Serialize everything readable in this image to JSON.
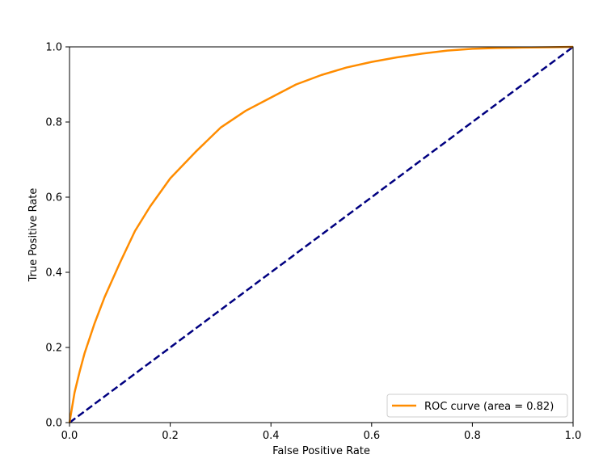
{
  "chart_data": {
    "type": "line",
    "title": "",
    "xlabel": "False Positive Rate",
    "ylabel": "True Positive Rate",
    "xlim": [
      0.0,
      1.0
    ],
    "ylim": [
      0.0,
      1.0
    ],
    "xticks": [
      "0.0",
      "0.2",
      "0.4",
      "0.6",
      "0.8",
      "1.0"
    ],
    "yticks": [
      "0.0",
      "0.2",
      "0.4",
      "0.6",
      "0.8",
      "1.0"
    ],
    "grid": false,
    "legend_position": "lower-right",
    "series": [
      {
        "name": "ROC curve (area = 0.82)",
        "color": "#ff8c00",
        "style": "solid",
        "x": [
          0.0,
          0.005,
          0.01,
          0.02,
          0.03,
          0.05,
          0.07,
          0.1,
          0.13,
          0.16,
          0.2,
          0.25,
          0.3,
          0.35,
          0.4,
          0.45,
          0.5,
          0.55,
          0.6,
          0.65,
          0.7,
          0.75,
          0.8,
          0.85,
          0.9,
          0.95,
          1.0
        ],
        "y": [
          0.0,
          0.04,
          0.08,
          0.135,
          0.185,
          0.265,
          0.335,
          0.425,
          0.51,
          0.575,
          0.65,
          0.72,
          0.785,
          0.83,
          0.865,
          0.9,
          0.925,
          0.945,
          0.96,
          0.972,
          0.982,
          0.99,
          0.995,
          0.997,
          0.998,
          0.999,
          1.0
        ]
      },
      {
        "name": "",
        "color": "#000080",
        "style": "dashed",
        "x": [
          0.0,
          1.0
        ],
        "y": [
          0.0,
          1.0
        ]
      }
    ]
  }
}
